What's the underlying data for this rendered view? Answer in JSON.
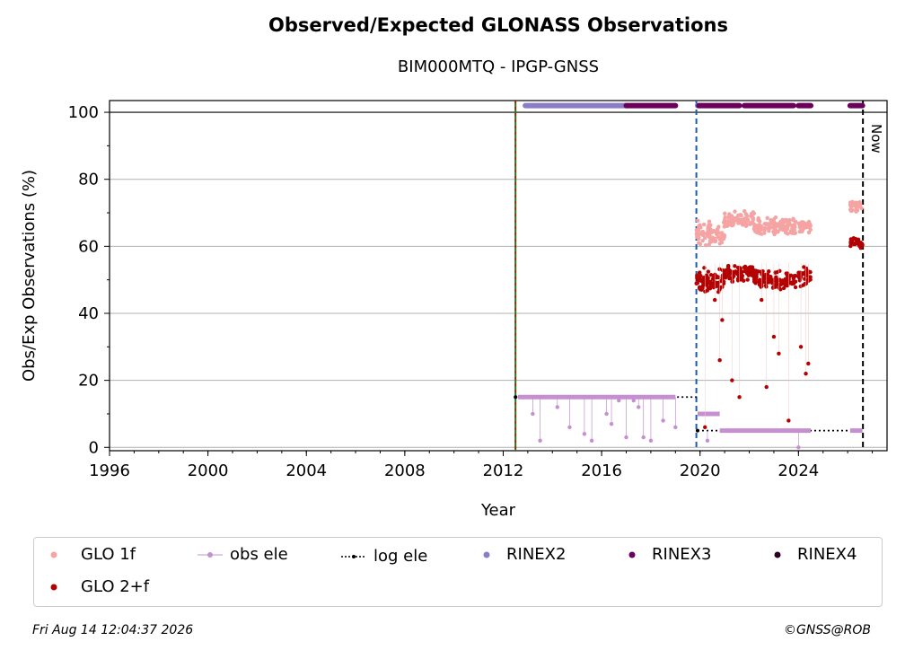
{
  "chart_data": {
    "type": "scatter",
    "title": "Observed/Expected GLONASS Observations",
    "subtitle": "BIM000MTQ - IPGP-GNSS",
    "xlabel": "Year",
    "ylabel": "Obs/Exp Observations (%)",
    "xlim": [
      1996,
      2027.6
    ],
    "ylim": [
      -1,
      103.5
    ],
    "xticks": [
      1996,
      2000,
      2004,
      2008,
      2012,
      2016,
      2020,
      2024
    ],
    "yticks": [
      0,
      20,
      40,
      60,
      80,
      100
    ],
    "grid": "horizontal",
    "legend_position": "bottom",
    "series": [
      {
        "name": "GLO 1f",
        "color": "#f5a3a3",
        "segments": [
          {
            "x": [
              2019.85,
              2021.0
            ],
            "center": 64,
            "spread": 4
          },
          {
            "x": [
              2021.0,
              2022.2
            ],
            "center": 68,
            "spread": 3
          },
          {
            "x": [
              2022.2,
              2023.9
            ],
            "center": 66,
            "spread": 3
          },
          {
            "x": [
              2024.0,
              2024.5
            ],
            "center": 66,
            "spread": 2
          },
          {
            "x": [
              2026.1,
              2026.6
            ],
            "center": 72,
            "spread": 2
          }
        ]
      },
      {
        "name": "GLO 2+f",
        "color": "#b30000",
        "segments": [
          {
            "x": [
              2019.85,
              2021.0
            ],
            "center": 50,
            "spread": 4
          },
          {
            "x": [
              2021.0,
              2022.2
            ],
            "center": 52,
            "spread": 3
          },
          {
            "x": [
              2022.2,
              2023.9
            ],
            "center": 50,
            "spread": 3
          },
          {
            "x": [
              2024.0,
              2024.5
            ],
            "center": 51,
            "spread": 3
          },
          {
            "x": [
              2026.1,
              2026.6
            ],
            "center": 61,
            "spread": 2
          }
        ],
        "outliers": [
          [
            2020.6,
            44
          ],
          [
            2020.9,
            38
          ],
          [
            2020.8,
            26
          ],
          [
            2021.3,
            20
          ],
          [
            2021.6,
            15
          ],
          [
            2022.5,
            44
          ],
          [
            2022.7,
            18
          ],
          [
            2023.0,
            33
          ],
          [
            2023.2,
            28
          ],
          [
            2024.1,
            30
          ],
          [
            2024.3,
            22
          ],
          [
            2024.4,
            25
          ],
          [
            2020.2,
            6
          ],
          [
            2023.6,
            8
          ]
        ]
      },
      {
        "name": "obs ele",
        "color": "#c58fd0",
        "points": [
          [
            2012.8,
            15
          ],
          [
            2013.2,
            10
          ],
          [
            2013.5,
            2
          ],
          [
            2014.2,
            12
          ],
          [
            2014.5,
            15
          ],
          [
            2014.7,
            6
          ],
          [
            2015.3,
            4
          ],
          [
            2015.6,
            2
          ],
          [
            2016.2,
            10
          ],
          [
            2016.4,
            7
          ],
          [
            2016.7,
            14
          ],
          [
            2017.0,
            3
          ],
          [
            2017.3,
            14
          ],
          [
            2017.5,
            12
          ],
          [
            2017.7,
            3
          ],
          [
            2018.0,
            2
          ],
          [
            2018.5,
            8
          ],
          [
            2019.0,
            6
          ],
          [
            2020.3,
            2
          ],
          [
            2024.0,
            0
          ]
        ]
      },
      {
        "name": "log ele",
        "color": "#000000",
        "steps": [
          [
            2012.5,
            2019.9,
            15
          ],
          [
            2019.9,
            2026.65,
            5
          ]
        ]
      },
      {
        "name": "RINEX2",
        "color": "#8a7cc6",
        "bars": [
          [
            2012.9,
            2017.0,
            102
          ],
          [
            2019.9,
            2019.95,
            102
          ]
        ]
      },
      {
        "name": "RINEX3",
        "color": "#6a005a",
        "bars": [
          [
            2017.0,
            2019.0,
            102
          ],
          [
            2019.95,
            2021.6,
            102
          ],
          [
            2021.8,
            2023.8,
            102
          ],
          [
            2024.0,
            2024.5,
            102
          ],
          [
            2026.1,
            2026.6,
            102
          ]
        ]
      },
      {
        "name": "RINEX4",
        "color": "#2b0020",
        "bars": []
      }
    ],
    "vertical_lines": [
      {
        "x": 2012.5,
        "color": "#1a7a1a",
        "style": "solid-dashed-red"
      },
      {
        "x": 2019.85,
        "color": "#1f5aa8",
        "style": "dashed"
      },
      {
        "x": 2026.62,
        "color": "#000000",
        "style": "dashed",
        "label": "Now"
      }
    ]
  },
  "footer": {
    "timestamp": "Fri Aug 14 12:04:37 2026",
    "credit": "©GNSS@ROB"
  }
}
